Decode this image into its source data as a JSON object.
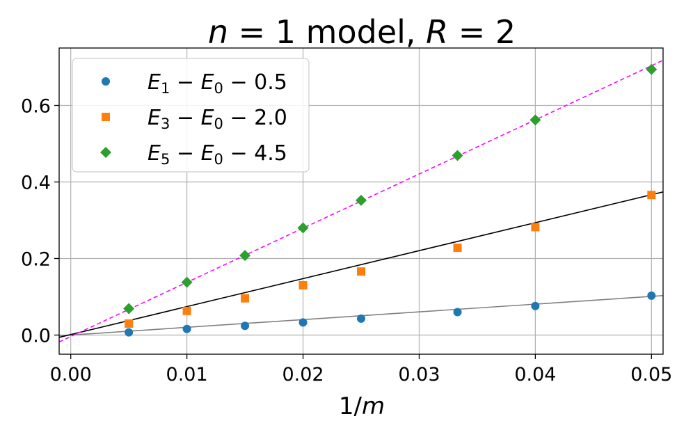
{
  "chart_data": {
    "type": "scatter",
    "title": "n = 1 model, R = 2",
    "title_parts": {
      "var1": "n",
      "eq1": " = 1 model, ",
      "var2": "R",
      "eq2": " = 2"
    },
    "xlabel": "1/m",
    "xlabel_parts": {
      "num": "1/",
      "var": "m"
    },
    "ylabel": "",
    "xlim": [
      -0.001,
      0.051
    ],
    "ylim": [
      -0.05,
      0.75
    ],
    "xticks": [
      0.0,
      0.01,
      0.02,
      0.03,
      0.04,
      0.05
    ],
    "xtick_labels": [
      "0.00",
      "0.01",
      "0.02",
      "0.03",
      "0.04",
      "0.05"
    ],
    "yticks": [
      0.0,
      0.2,
      0.4,
      0.6
    ],
    "ytick_labels": [
      "0.0",
      "0.2",
      "0.4",
      "0.6"
    ],
    "grid": true,
    "legend_position": "top-left",
    "series": [
      {
        "name": "E1 − E0 − 0.5",
        "label_parts": {
          "a": "E",
          "a_sub": "1",
          "b": "E",
          "b_sub": "0",
          "c": "0.5"
        },
        "marker": "circle",
        "color": "#1f77b4",
        "x": [
          0.005,
          0.01,
          0.015,
          0.02,
          0.025,
          0.0333,
          0.04,
          0.05
        ],
        "y": [
          0.007,
          0.016,
          0.024,
          0.033,
          0.043,
          0.06,
          0.076,
          0.103
        ]
      },
      {
        "name": "E3 − E0 − 2.0",
        "label_parts": {
          "a": "E",
          "a_sub": "3",
          "b": "E",
          "b_sub": "0",
          "c": "2.0"
        },
        "marker": "square",
        "color": "#ff7f0e",
        "x": [
          0.005,
          0.01,
          0.015,
          0.02,
          0.025,
          0.0333,
          0.04,
          0.05
        ],
        "y": [
          0.03,
          0.063,
          0.096,
          0.13,
          0.166,
          0.228,
          0.282,
          0.366
        ]
      },
      {
        "name": "E5 − E0 − 4.5",
        "label_parts": {
          "a": "E",
          "a_sub": "5",
          "b": "E",
          "b_sub": "0",
          "c": "4.5"
        },
        "marker": "diamond",
        "color": "#2ca02c",
        "x": [
          0.005,
          0.01,
          0.015,
          0.02,
          0.025,
          0.0333,
          0.04,
          0.05
        ],
        "y": [
          0.069,
          0.138,
          0.208,
          0.28,
          0.352,
          0.469,
          0.562,
          0.694
        ]
      }
    ],
    "fit_lines": [
      {
        "color": "#808080",
        "style": "solid",
        "x": [
          -0.001,
          0.051
        ],
        "y": [
          -0.002,
          0.103
        ]
      },
      {
        "color": "#000000",
        "style": "solid",
        "x": [
          -0.001,
          0.051
        ],
        "y": [
          -0.006,
          0.374
        ]
      },
      {
        "color": "#ff00ff",
        "style": "dashed",
        "x": [
          -0.001,
          0.051
        ],
        "y": [
          -0.018,
          0.718
        ]
      }
    ]
  }
}
